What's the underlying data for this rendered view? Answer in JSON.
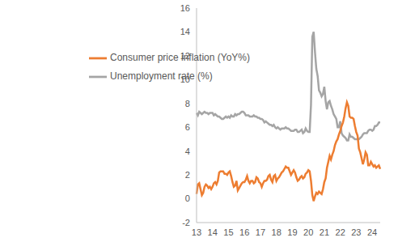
{
  "chart_data": {
    "type": "line",
    "categories": [
      "13",
      null,
      null,
      null,
      null,
      null,
      null,
      null,
      null,
      null,
      null,
      null,
      "14",
      null,
      null,
      null,
      null,
      null,
      null,
      null,
      null,
      null,
      null,
      null,
      "15",
      null,
      null,
      null,
      null,
      null,
      null,
      null,
      null,
      null,
      null,
      null,
      "16",
      null,
      null,
      null,
      null,
      null,
      null,
      null,
      null,
      null,
      null,
      null,
      "17",
      null,
      null,
      null,
      null,
      null,
      null,
      null,
      null,
      null,
      null,
      null,
      "18",
      null,
      null,
      null,
      null,
      null,
      null,
      null,
      null,
      null,
      null,
      null,
      "19",
      null,
      null,
      null,
      null,
      null,
      null,
      null,
      null,
      null,
      null,
      null,
      "20",
      null,
      null,
      null,
      null,
      null,
      null,
      null,
      null,
      null,
      null,
      null,
      "21",
      null,
      null,
      null,
      null,
      null,
      null,
      null,
      null,
      null,
      null,
      null,
      "22",
      null,
      null,
      null,
      null,
      null,
      null,
      null,
      null,
      null,
      null,
      null,
      "23",
      null,
      null,
      null,
      null,
      null,
      null,
      null,
      null,
      null,
      null,
      null,
      "24",
      null,
      null,
      null,
      null,
      null,
      null
    ],
    "series": [
      {
        "name": "Unemployment rate (%)",
        "color": "#a5a5a5",
        "values": [
          7.2,
          7.0,
          7.3,
          7.2,
          7.1,
          7.2,
          7.3,
          7.2,
          7.2,
          7.1,
          7.2,
          7.2,
          7.2,
          7.0,
          7.1,
          7.0,
          6.9,
          6.9,
          6.8,
          6.7,
          6.7,
          6.8,
          6.9,
          6.8,
          6.9,
          6.8,
          7.0,
          6.9,
          6.9,
          7.1,
          7.0,
          7.1,
          7.1,
          7.2,
          7.3,
          7.3,
          7.2,
          7.0,
          7.0,
          7.0,
          6.9,
          6.9,
          6.9,
          7.0,
          6.9,
          6.9,
          6.8,
          6.8,
          6.7,
          6.7,
          6.6,
          6.4,
          6.5,
          6.4,
          6.3,
          6.2,
          6.2,
          6.1,
          6.2,
          6.0,
          5.9,
          6.0,
          5.9,
          5.8,
          5.9,
          5.9,
          5.9,
          6.0,
          5.9,
          5.9,
          5.8,
          5.7,
          5.7,
          5.7,
          5.8,
          5.8,
          5.6,
          5.6,
          5.7,
          5.8,
          5.5,
          5.6,
          5.9,
          5.7,
          5.6,
          5.6,
          7.9,
          13.6,
          14.0,
          12.3,
          10.9,
          10.3,
          9.1,
          8.9,
          8.6,
          8.8,
          9.4,
          8.2,
          7.5,
          8.1,
          8.2,
          7.8,
          7.5,
          7.1,
          6.9,
          6.7,
          6.0,
          6.0,
          6.5,
          5.5,
          5.3,
          5.2,
          5.1,
          4.9,
          4.9,
          5.4,
          5.2,
          5.2,
          5.1,
          5.0,
          5.0,
          5.0,
          5.0,
          5.1,
          5.2,
          5.4,
          5.5,
          5.5,
          5.5,
          5.7,
          5.8,
          5.8,
          5.7,
          5.8,
          6.1,
          6.1,
          6.2,
          6.4,
          6.4
        ]
      },
      {
        "name": "Consumer price inflation (YoY%)",
        "color": "#ed7d31",
        "values": [
          0.4,
          1.2,
          1.3,
          0.8,
          0.3,
          0.5,
          1.0,
          1.2,
          1.1,
          0.9,
          1.0,
          0.8,
          1.0,
          1.3,
          1.4,
          1.2,
          1.5,
          2.2,
          2.3,
          2.3,
          2.3,
          2.1,
          2.1,
          2.0,
          2.2,
          2.3,
          1.9,
          1.4,
          1.0,
          1.1,
          1.5,
          0.7,
          0.9,
          1.1,
          1.3,
          1.4,
          1.4,
          1.6,
          1.9,
          1.5,
          1.3,
          1.5,
          1.5,
          1.3,
          1.4,
          1.8,
          1.7,
          1.4,
          1.3,
          1.0,
          1.3,
          1.5,
          1.5,
          1.6,
          1.9,
          2.0,
          1.6,
          1.4,
          1.9,
          2.0,
          1.5,
          1.7,
          1.8,
          2.0,
          2.2,
          2.3,
          2.5,
          2.7,
          2.6,
          2.6,
          2.3,
          2.0,
          2.2,
          2.4,
          2.2,
          1.8,
          1.5,
          1.6,
          1.8,
          1.9,
          1.7,
          1.8,
          2.1,
          2.2,
          2.4,
          2.3,
          1.5,
          0.3,
          -0.2,
          0.2,
          0.5,
          0.4,
          0.6,
          0.5,
          0.4,
          0.8,
          1.4,
          1.7,
          2.6,
          3.1,
          3.6,
          3.3,
          3.7,
          4.0,
          4.5,
          4.8,
          5.0,
          5.4,
          5.7,
          6.1,
          6.4,
          6.9,
          7.6,
          8.1,
          7.8,
          6.9,
          6.8,
          6.8,
          6.7,
          6.1,
          5.6,
          5.3,
          4.2,
          3.9,
          3.4,
          2.9,
          3.3,
          3.9,
          3.7,
          2.8,
          2.8,
          3.1,
          2.9,
          2.7,
          2.8,
          2.6,
          2.7,
          2.8,
          2.5
        ]
      }
    ],
    "ylim": [
      -2,
      16
    ],
    "yticks": [
      -2,
      0,
      2,
      4,
      6,
      8,
      10,
      12,
      14,
      16
    ],
    "grid": false,
    "legend": "upper left"
  }
}
